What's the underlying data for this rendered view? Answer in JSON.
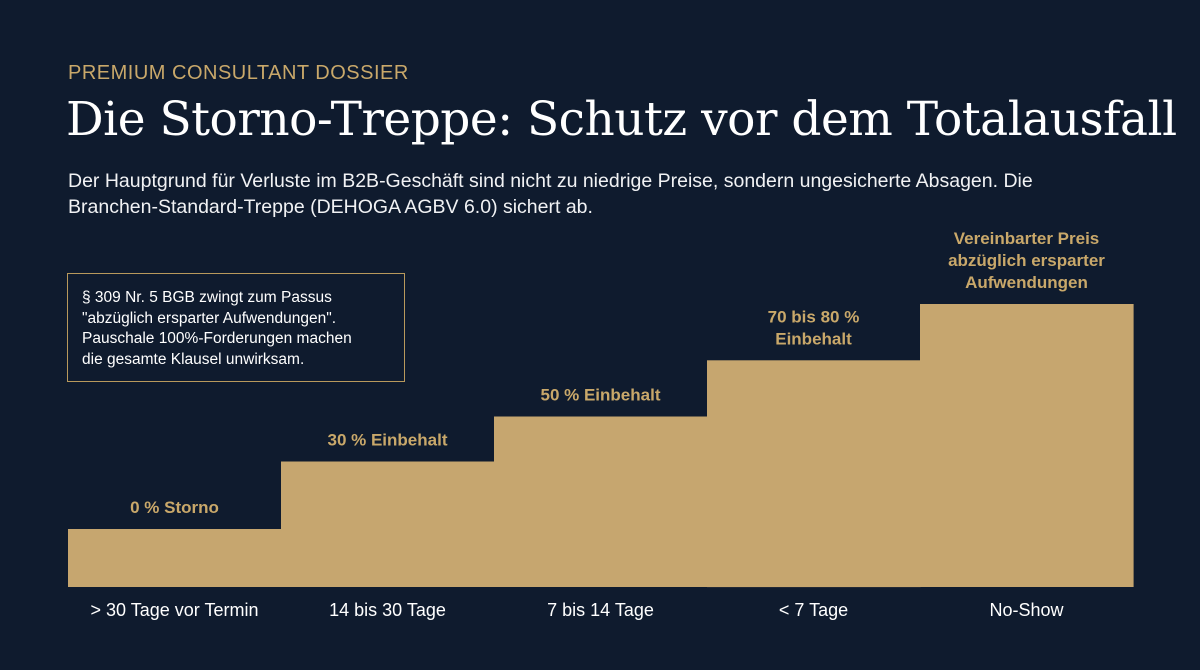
{
  "header": {
    "eyebrow": "PREMIUM CONSULTANT DOSSIER",
    "title": "Die Storno-Treppe: Schutz vor dem Totalausfall",
    "subtitle": "Der Hauptgrund für Verluste im B2B-Geschäft sind nicht zu niedrige Preise, sondern ungesicherte Absagen. Die Branchen-Standard-Treppe (DEHOGA AGBV 6.0) sichert ab."
  },
  "legal_note": {
    "lines": [
      "§ 309 Nr. 5 BGB zwingt zum Passus",
      "\"abzüglich ersparter Aufwendungen\".",
      "Pauschale 100%-Forderungen machen",
      "die gesamte Klausel unwirksam."
    ]
  },
  "colors": {
    "background": "#0f1b2e",
    "bar": "#c6a66f",
    "accent_text": "#c9a86a",
    "box_border": "#b8995c"
  },
  "chart_data": {
    "type": "bar",
    "categories": [
      "> 30 Tage vor Termin",
      "14 bis 30 Tage",
      "7 bis 14 Tage",
      "< 7 Tage",
      "No-Show"
    ],
    "values": [
      0,
      30,
      50,
      75,
      100
    ],
    "data_labels": [
      [
        "0 % Storno"
      ],
      [
        "30 % Einbehalt"
      ],
      [
        "50 % Einbehalt"
      ],
      [
        "70 bis 80 %",
        "Einbehalt"
      ],
      [
        "Vereinbarter Preis",
        "abzüglich ersparter",
        "Aufwendungen"
      ]
    ],
    "ylim": [
      0,
      100
    ],
    "grid": false,
    "legend": "none",
    "xlabel": "",
    "ylabel": ""
  }
}
